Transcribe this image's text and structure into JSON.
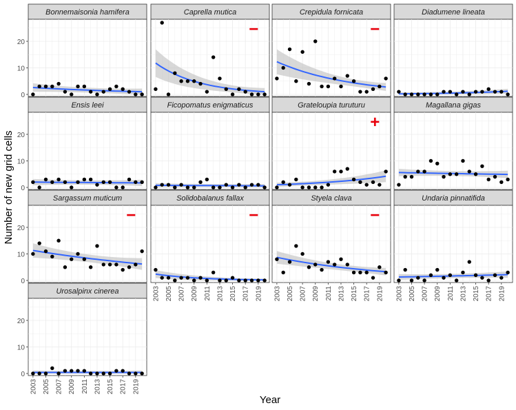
{
  "chart_data": {
    "type": "scatter",
    "layout": "facet_wrap",
    "ylabel": "Number of new grid cells",
    "xlabel": "Year",
    "y_ticks": [
      0,
      10,
      20
    ],
    "x_ticks": [
      "2003",
      "2005",
      "2007",
      "2009",
      "2011",
      "2013",
      "2015",
      "2017",
      "2019"
    ],
    "xlim": [
      2003,
      2020
    ],
    "ylim": [
      0,
      27
    ],
    "grid": true,
    "colors": {
      "points": "#000000",
      "trend": "#3366FF",
      "ribbon": "#BEBEBE",
      "marker": "#E8000B",
      "strip": "#D9D9D9"
    },
    "panels": [
      {
        "title": "Bonnemaisonia hamifera",
        "marker": "",
        "x": [
          2003,
          2004,
          2005,
          2006,
          2007,
          2008,
          2009,
          2010,
          2011,
          2012,
          2013,
          2014,
          2015,
          2016,
          2017,
          2018,
          2019,
          2020
        ],
        "y": [
          0,
          3,
          3,
          3,
          4,
          1,
          0,
          3,
          3,
          1,
          0,
          1,
          2,
          3,
          2,
          1,
          0,
          0
        ],
        "trend": [
          2.6,
          1.0
        ],
        "band": [
          1.4,
          1.0
        ]
      },
      {
        "title": "Caprella mutica",
        "marker": "−",
        "x": [
          2003,
          2004,
          2005,
          2006,
          2007,
          2008,
          2009,
          2010,
          2011,
          2012,
          2013,
          2014,
          2015,
          2016,
          2017,
          2018,
          2019,
          2020
        ],
        "y": [
          2,
          27,
          0,
          8,
          5,
          5,
          5,
          4,
          1,
          14,
          6,
          2,
          0,
          2,
          1,
          0,
          0,
          0
        ],
        "trend": [
          11.8,
          1.0
        ],
        "band": [
          5.0,
          1.2
        ]
      },
      {
        "title": "Crepidula fornicata",
        "marker": "−",
        "x": [
          2003,
          2004,
          2005,
          2006,
          2007,
          2008,
          2009,
          2010,
          2011,
          2012,
          2013,
          2014,
          2015,
          2016,
          2017,
          2018,
          2019,
          2020
        ],
        "y": [
          6,
          10,
          17,
          5,
          16,
          4,
          20,
          3,
          3,
          6,
          3,
          7,
          5,
          1,
          1,
          2,
          3,
          6
        ],
        "trend": [
          12.3,
          2.8
        ],
        "band": [
          4.5,
          1.3
        ]
      },
      {
        "title": "Diadumene lineata",
        "marker": "",
        "x": [
          2003,
          2004,
          2005,
          2006,
          2007,
          2008,
          2009,
          2010,
          2011,
          2012,
          2013,
          2014,
          2015,
          2016,
          2017,
          2018,
          2019,
          2020
        ],
        "y": [
          1,
          0,
          0,
          0,
          0,
          0,
          0,
          1,
          1,
          0,
          1,
          0,
          1,
          1,
          2,
          1,
          1,
          0
        ],
        "trend": [
          0.2,
          1.2
        ],
        "band": [
          0.4,
          0.7
        ]
      },
      {
        "title": "Ensis leei",
        "marker": "",
        "x": [
          2003,
          2004,
          2005,
          2006,
          2007,
          2008,
          2009,
          2010,
          2011,
          2012,
          2013,
          2014,
          2015,
          2016,
          2017,
          2018,
          2019,
          2020
        ],
        "y": [
          2,
          0,
          3,
          2,
          3,
          2,
          0,
          2,
          3,
          3,
          1,
          2,
          2,
          0,
          0,
          3,
          2,
          2
        ],
        "trend": [
          2.0,
          1.7
        ],
        "band": [
          1.0,
          1.0
        ]
      },
      {
        "title": "Ficopomatus enigmaticus",
        "marker": "",
        "x": [
          2003,
          2004,
          2005,
          2006,
          2007,
          2008,
          2009,
          2010,
          2011,
          2012,
          2013,
          2014,
          2015,
          2016,
          2017,
          2018,
          2019,
          2020
        ],
        "y": [
          0,
          1,
          1,
          0,
          1,
          0,
          0,
          2,
          3,
          0,
          0,
          1,
          0,
          1,
          0,
          1,
          1,
          0
        ],
        "trend": [
          0.8,
          0.6
        ],
        "band": [
          0.6,
          0.5
        ]
      },
      {
        "title": "Grateloupia turuturu",
        "marker": "+",
        "x": [
          2003,
          2004,
          2005,
          2006,
          2007,
          2008,
          2009,
          2010,
          2011,
          2012,
          2013,
          2014,
          2015,
          2016,
          2017,
          2018,
          2019,
          2020
        ],
        "y": [
          0,
          2,
          1,
          3,
          0,
          0,
          0,
          0,
          1,
          6,
          6,
          7,
          3,
          2,
          1,
          2,
          1,
          6
        ],
        "trend": [
          1.0,
          4.2
        ],
        "band": [
          0.6,
          2.0
        ]
      },
      {
        "title": "Magallana gigas",
        "marker": "",
        "x": [
          2003,
          2004,
          2005,
          2006,
          2007,
          2008,
          2009,
          2010,
          2011,
          2012,
          2013,
          2014,
          2015,
          2016,
          2017,
          2018,
          2019,
          2020
        ],
        "y": [
          1,
          4,
          4,
          6,
          6,
          10,
          9,
          4,
          5,
          5,
          10,
          6,
          5,
          8,
          3,
          4,
          2,
          3
        ],
        "trend": [
          5.6,
          4.9
        ],
        "band": [
          1.2,
          1.2
        ]
      },
      {
        "title": "Sargassum muticum",
        "marker": "−",
        "x": [
          2003,
          2004,
          2005,
          2006,
          2007,
          2008,
          2009,
          2010,
          2011,
          2012,
          2013,
          2014,
          2015,
          2016,
          2017,
          2018,
          2019,
          2020
        ],
        "y": [
          10,
          14,
          11,
          9,
          15,
          5,
          8,
          10,
          8,
          5,
          13,
          6,
          6,
          6,
          4,
          5,
          6,
          11
        ],
        "trend": [
          11.3,
          6.2
        ],
        "band": [
          2.5,
          2.0
        ]
      },
      {
        "title": "Solidobalanus fallax",
        "marker": "−",
        "x": [
          2003,
          2004,
          2005,
          2006,
          2007,
          2008,
          2009,
          2010,
          2011,
          2012,
          2013,
          2014,
          2015,
          2016,
          2017,
          2018,
          2019,
          2020
        ],
        "y": [
          4,
          1,
          1,
          0,
          1,
          1,
          0,
          1,
          0,
          3,
          0,
          0,
          1,
          0,
          0,
          0,
          0,
          0
        ],
        "trend": [
          2.4,
          0.2
        ],
        "band": [
          1.3,
          0.3
        ]
      },
      {
        "title": "Styela clava",
        "marker": "−",
        "x": [
          2003,
          2004,
          2005,
          2006,
          2007,
          2008,
          2009,
          2010,
          2011,
          2012,
          2013,
          2014,
          2015,
          2016,
          2017,
          2018,
          2019,
          2020
        ],
        "y": [
          8,
          3,
          7,
          13,
          10,
          5,
          6,
          4,
          7,
          6,
          8,
          6,
          3,
          3,
          3,
          1,
          5,
          3
        ],
        "trend": [
          8.7,
          3.3
        ],
        "band": [
          2.2,
          1.2
        ]
      },
      {
        "title": "Undaria pinnatifida",
        "marker": "",
        "x": [
          2003,
          2004,
          2005,
          2006,
          2007,
          2008,
          2009,
          2010,
          2011,
          2012,
          2013,
          2014,
          2015,
          2016,
          2017,
          2018,
          2019,
          2020
        ],
        "y": [
          0,
          4,
          0,
          1,
          0,
          2,
          4,
          1,
          2,
          0,
          3,
          7,
          2,
          1,
          0,
          2,
          1,
          3
        ],
        "trend": [
          1.3,
          2.2
        ],
        "band": [
          0.9,
          1.0
        ]
      },
      {
        "title": "Urosalpinx cinerea",
        "marker": "",
        "x": [
          2003,
          2004,
          2005,
          2006,
          2007,
          2008,
          2009,
          2010,
          2011,
          2012,
          2013,
          2014,
          2015,
          2016,
          2017,
          2018,
          2019,
          2020
        ],
        "y": [
          0,
          0,
          0,
          2,
          0,
          1,
          1,
          1,
          1,
          0,
          0,
          0,
          0,
          1,
          1,
          0,
          0,
          0
        ],
        "trend": [
          0.4,
          0.4
        ],
        "band": [
          0.5,
          0.5
        ]
      }
    ]
  }
}
